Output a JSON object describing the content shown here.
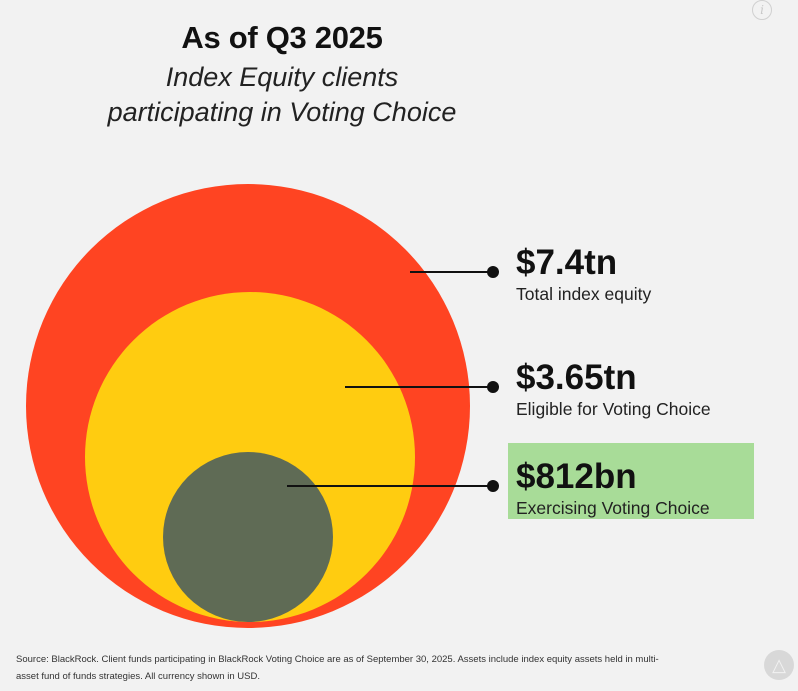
{
  "header": {
    "title": "As of Q3 2025",
    "subtitle_line1": "Index Equity clients",
    "subtitle_line2": "participating in Voting Choice"
  },
  "chart_data": {
    "type": "nested-circles",
    "unit": "USD",
    "items": [
      {
        "value_label": "$7.4tn",
        "value": 7.4,
        "caption": "Total index equity",
        "color": "#ff4422"
      },
      {
        "value_label": "$3.65tn",
        "value": 3.65,
        "caption": "Eligible for Voting Choice",
        "color": "#ffcc10"
      },
      {
        "value_label": "$812bn",
        "value": 0.812,
        "caption": "Exercising Voting Choice",
        "color": "#5f6b55",
        "highlight": "#a8dc98"
      }
    ]
  },
  "footer": {
    "source_line1": "Source: BlackRock. Client funds participating in BlackRock Voting Choice are as of September 30, 2025. Assets include index equity assets held in multi-",
    "source_line2": "asset fund of funds strategies. All currency shown in USD."
  },
  "icons": {
    "info": "info-icon",
    "logo": "brand-logo-icon"
  }
}
